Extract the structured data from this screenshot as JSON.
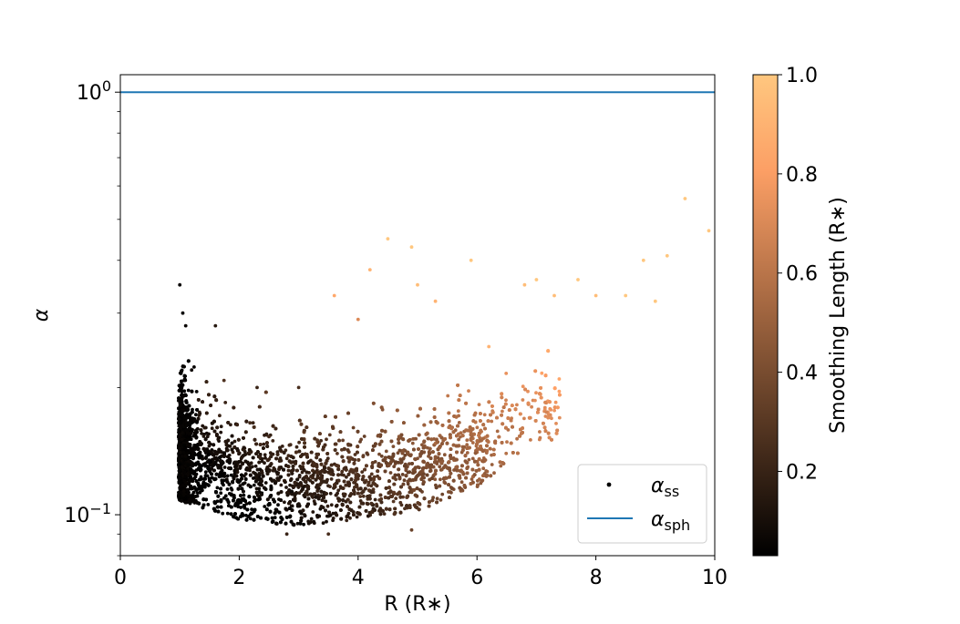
{
  "chart_data": {
    "type": "scatter",
    "xlabel": "R (R∗)",
    "ylabel": "α",
    "xlim": [
      0,
      10
    ],
    "ylim": [
      0.08,
      1.1
    ],
    "y_scale": "log",
    "x_ticks": [
      "0",
      "2",
      "4",
      "6",
      "8",
      "10"
    ],
    "y_ticks": [
      {
        "value": 1.0,
        "base": "10",
        "exp": "0"
      },
      {
        "value": 0.1,
        "base": "10",
        "exp": "−1"
      }
    ],
    "legend": {
      "position": "lower-right",
      "entries": [
        {
          "symbol": "α",
          "sub": "ss",
          "marker": "point",
          "color": "#000000"
        },
        {
          "symbol": "α",
          "sub": "sph",
          "marker": "line",
          "color": "#1f77b4"
        }
      ]
    },
    "hline": {
      "value": 1.0,
      "color": "#1f77b4"
    },
    "colorbar": {
      "label": "Smoothing Length (R∗)",
      "colormap": "copper",
      "range": [
        0.03,
        1.0
      ],
      "ticks": [
        "0.2",
        "0.4",
        "0.6",
        "0.8",
        "1.0"
      ],
      "tick_values": [
        0.2,
        0.4,
        0.6,
        0.8,
        1.0
      ]
    },
    "series": [
      {
        "sample_points": [
          [
            1.0,
            0.35,
            0.05
          ],
          [
            1.05,
            0.3,
            0.05
          ],
          [
            1.1,
            0.28,
            0.06
          ],
          [
            1.2,
            0.22,
            0.08
          ],
          [
            1.6,
            0.28,
            0.15
          ],
          [
            2.3,
            0.2,
            0.2
          ],
          [
            3.0,
            0.2,
            0.25
          ],
          [
            3.6,
            0.33,
            0.85
          ],
          [
            4.0,
            0.29,
            0.7
          ],
          [
            4.2,
            0.38,
            0.9
          ],
          [
            4.5,
            0.45,
            1.0
          ],
          [
            4.9,
            0.43,
            1.0
          ],
          [
            5.0,
            0.35,
            0.95
          ],
          [
            5.3,
            0.32,
            0.9
          ],
          [
            5.9,
            0.4,
            1.0
          ],
          [
            6.2,
            0.25,
            0.9
          ],
          [
            6.8,
            0.35,
            0.95
          ],
          [
            7.0,
            0.36,
            1.0
          ],
          [
            7.3,
            0.33,
            0.95
          ],
          [
            7.7,
            0.36,
            1.0
          ],
          [
            8.0,
            0.33,
            0.95
          ],
          [
            8.5,
            0.33,
            1.0
          ],
          [
            8.8,
            0.4,
            1.0
          ],
          [
            9.0,
            0.32,
            1.0
          ],
          [
            9.2,
            0.41,
            1.0
          ],
          [
            9.5,
            0.56,
            1.0
          ],
          [
            9.9,
            0.47,
            1.0
          ],
          [
            2.8,
            0.09,
            0.2
          ],
          [
            3.5,
            0.09,
            0.25
          ],
          [
            4.9,
            0.092,
            0.35
          ]
        ],
        "envelope": {
          "x_range": [
            0.98,
            7.4
          ],
          "lower": [
            [
              1.0,
              0.108
            ],
            [
              2.0,
              0.097
            ],
            [
              3.0,
              0.094
            ],
            [
              4.0,
              0.097
            ],
            [
              5.0,
              0.102
            ],
            [
              6.0,
              0.115
            ],
            [
              7.0,
              0.15
            ]
          ],
          "upper": [
            [
              1.0,
              0.22
            ],
            [
              1.5,
              0.2
            ],
            [
              2.0,
              0.18
            ],
            [
              3.0,
              0.17
            ],
            [
              4.0,
              0.17
            ],
            [
              5.0,
              0.18
            ],
            [
              6.0,
              0.2
            ],
            [
              7.0,
              0.24
            ]
          ]
        }
      }
    ]
  }
}
